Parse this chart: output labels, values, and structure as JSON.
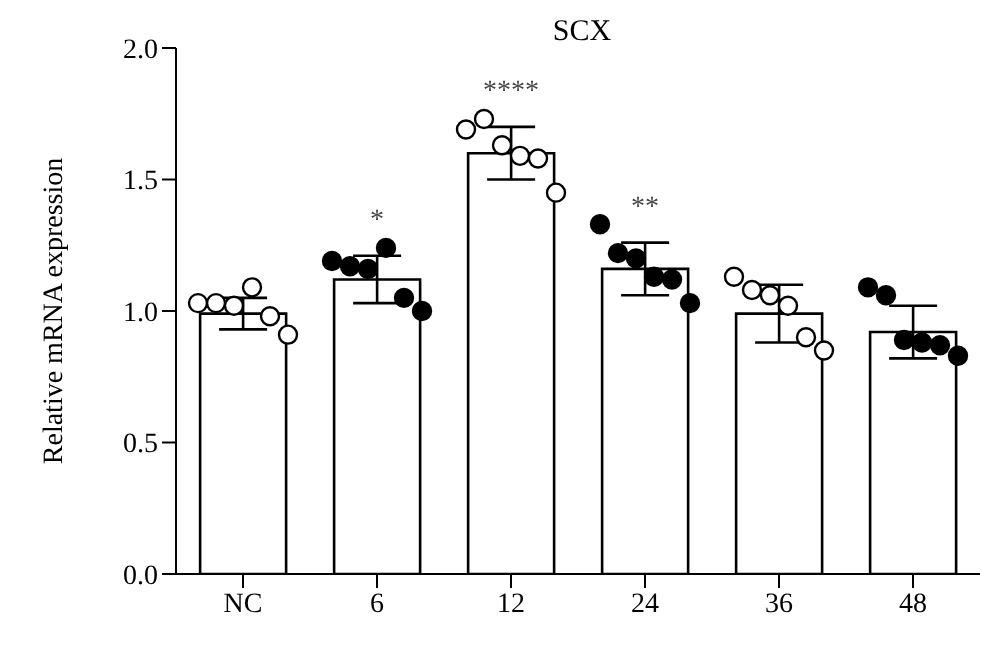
{
  "chart_data": {
    "type": "bar",
    "title": "SCX",
    "ylabel": "Relative mRNA expression",
    "categories": [
      "NC",
      "6",
      "12",
      "24",
      "36",
      "48"
    ],
    "ylim": [
      0,
      2
    ],
    "yticks": [
      {
        "value": 0,
        "label": "0.0"
      },
      {
        "value": 0.5,
        "label": "0.5"
      },
      {
        "value": 1,
        "label": "1.0"
      },
      {
        "value": 1.5,
        "label": "1.5"
      },
      {
        "value": 2,
        "label": "2.0"
      }
    ],
    "grid": false,
    "legend": false,
    "series": [
      {
        "color": "#ffffff",
        "values": [
          0.99,
          1.12,
          1.6,
          1.16,
          0.99,
          0.92
        ],
        "errors": [
          0.06,
          0.09,
          0.1,
          0.1,
          0.11,
          0.1
        ]
      },
      {
        "type": "scatter",
        "color": "#ffffff",
        "marker": "circle",
        "x": [
          "NC",
          "NC",
          "NC",
          "NC",
          "NC",
          "NC",
          "12",
          "12",
          "12",
          "12",
          "12",
          "12",
          "36",
          "36",
          "36",
          "36",
          "36",
          "36"
        ],
        "values": [
          1.03,
          1.03,
          1.02,
          1.09,
          0.98,
          0.91,
          1.69,
          1.73,
          1.63,
          1.59,
          1.58,
          1.45,
          1.13,
          1.08,
          1.06,
          1.02,
          0.9,
          0.85
        ]
      },
      {
        "type": "scatter",
        "color": "#000000",
        "marker": "circle",
        "x": [
          "6",
          "6",
          "6",
          "6",
          "6",
          "6",
          "24",
          "24",
          "24",
          "24",
          "24",
          "24",
          "48",
          "48",
          "48",
          "48",
          "48",
          "48"
        ],
        "values": [
          1.19,
          1.17,
          1.16,
          1.24,
          1.05,
          1.0,
          1.33,
          1.22,
          1.2,
          1.13,
          1.12,
          1.03,
          1.09,
          1.06,
          0.89,
          0.88,
          0.87,
          0.83
        ]
      }
    ],
    "annotations": [
      {
        "text": "*",
        "x": "6",
        "y": 1.21
      },
      {
        "text": "****",
        "x": "12",
        "y": 1.7
      },
      {
        "text": "**",
        "x": "24",
        "y": 1.26
      }
    ]
  }
}
